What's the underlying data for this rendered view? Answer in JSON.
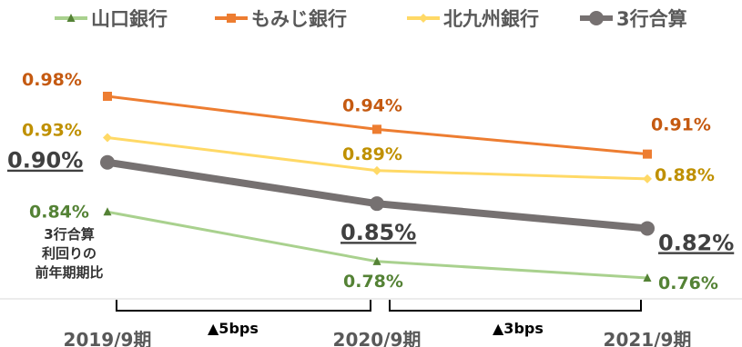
{
  "chart_data": {
    "type": "line",
    "categories": [
      "2019/9期",
      "2020/9期",
      "2021/9期"
    ],
    "series": [
      {
        "name": "山口銀行",
        "values": [
          0.84,
          0.78,
          0.76
        ],
        "labels": [
          "0.84%",
          "0.78%",
          "0.76%"
        ],
        "color": "#a9d18e",
        "label_color": "#548235",
        "marker": "triangle"
      },
      {
        "name": "もみじ銀行",
        "values": [
          0.98,
          0.94,
          0.91
        ],
        "labels": [
          "0.98%",
          "0.94%",
          "0.91%"
        ],
        "color": "#ed7d31",
        "label_color": "#c55a11",
        "marker": "square"
      },
      {
        "name": "北九州銀行",
        "values": [
          0.93,
          0.89,
          0.88
        ],
        "labels": [
          "0.93%",
          "0.89%",
          "0.88%"
        ],
        "color": "#ffd966",
        "label_color": "#bf9000",
        "marker": "diamond"
      },
      {
        "name": "3行合算",
        "values": [
          0.9,
          0.85,
          0.82
        ],
        "labels": [
          "0.90%",
          "0.85%",
          "0.82%"
        ],
        "color": "#767171",
        "label_color": "#404040",
        "marker": "circle"
      }
    ],
    "annotations": {
      "note_lines": [
        "3行合算",
        "利回りの",
        "前年期期比"
      ],
      "changes": [
        "▲5bps",
        "▲3bps"
      ]
    },
    "legend": "top",
    "grid": false,
    "ylim": [
      0.7,
      1.02
    ]
  }
}
